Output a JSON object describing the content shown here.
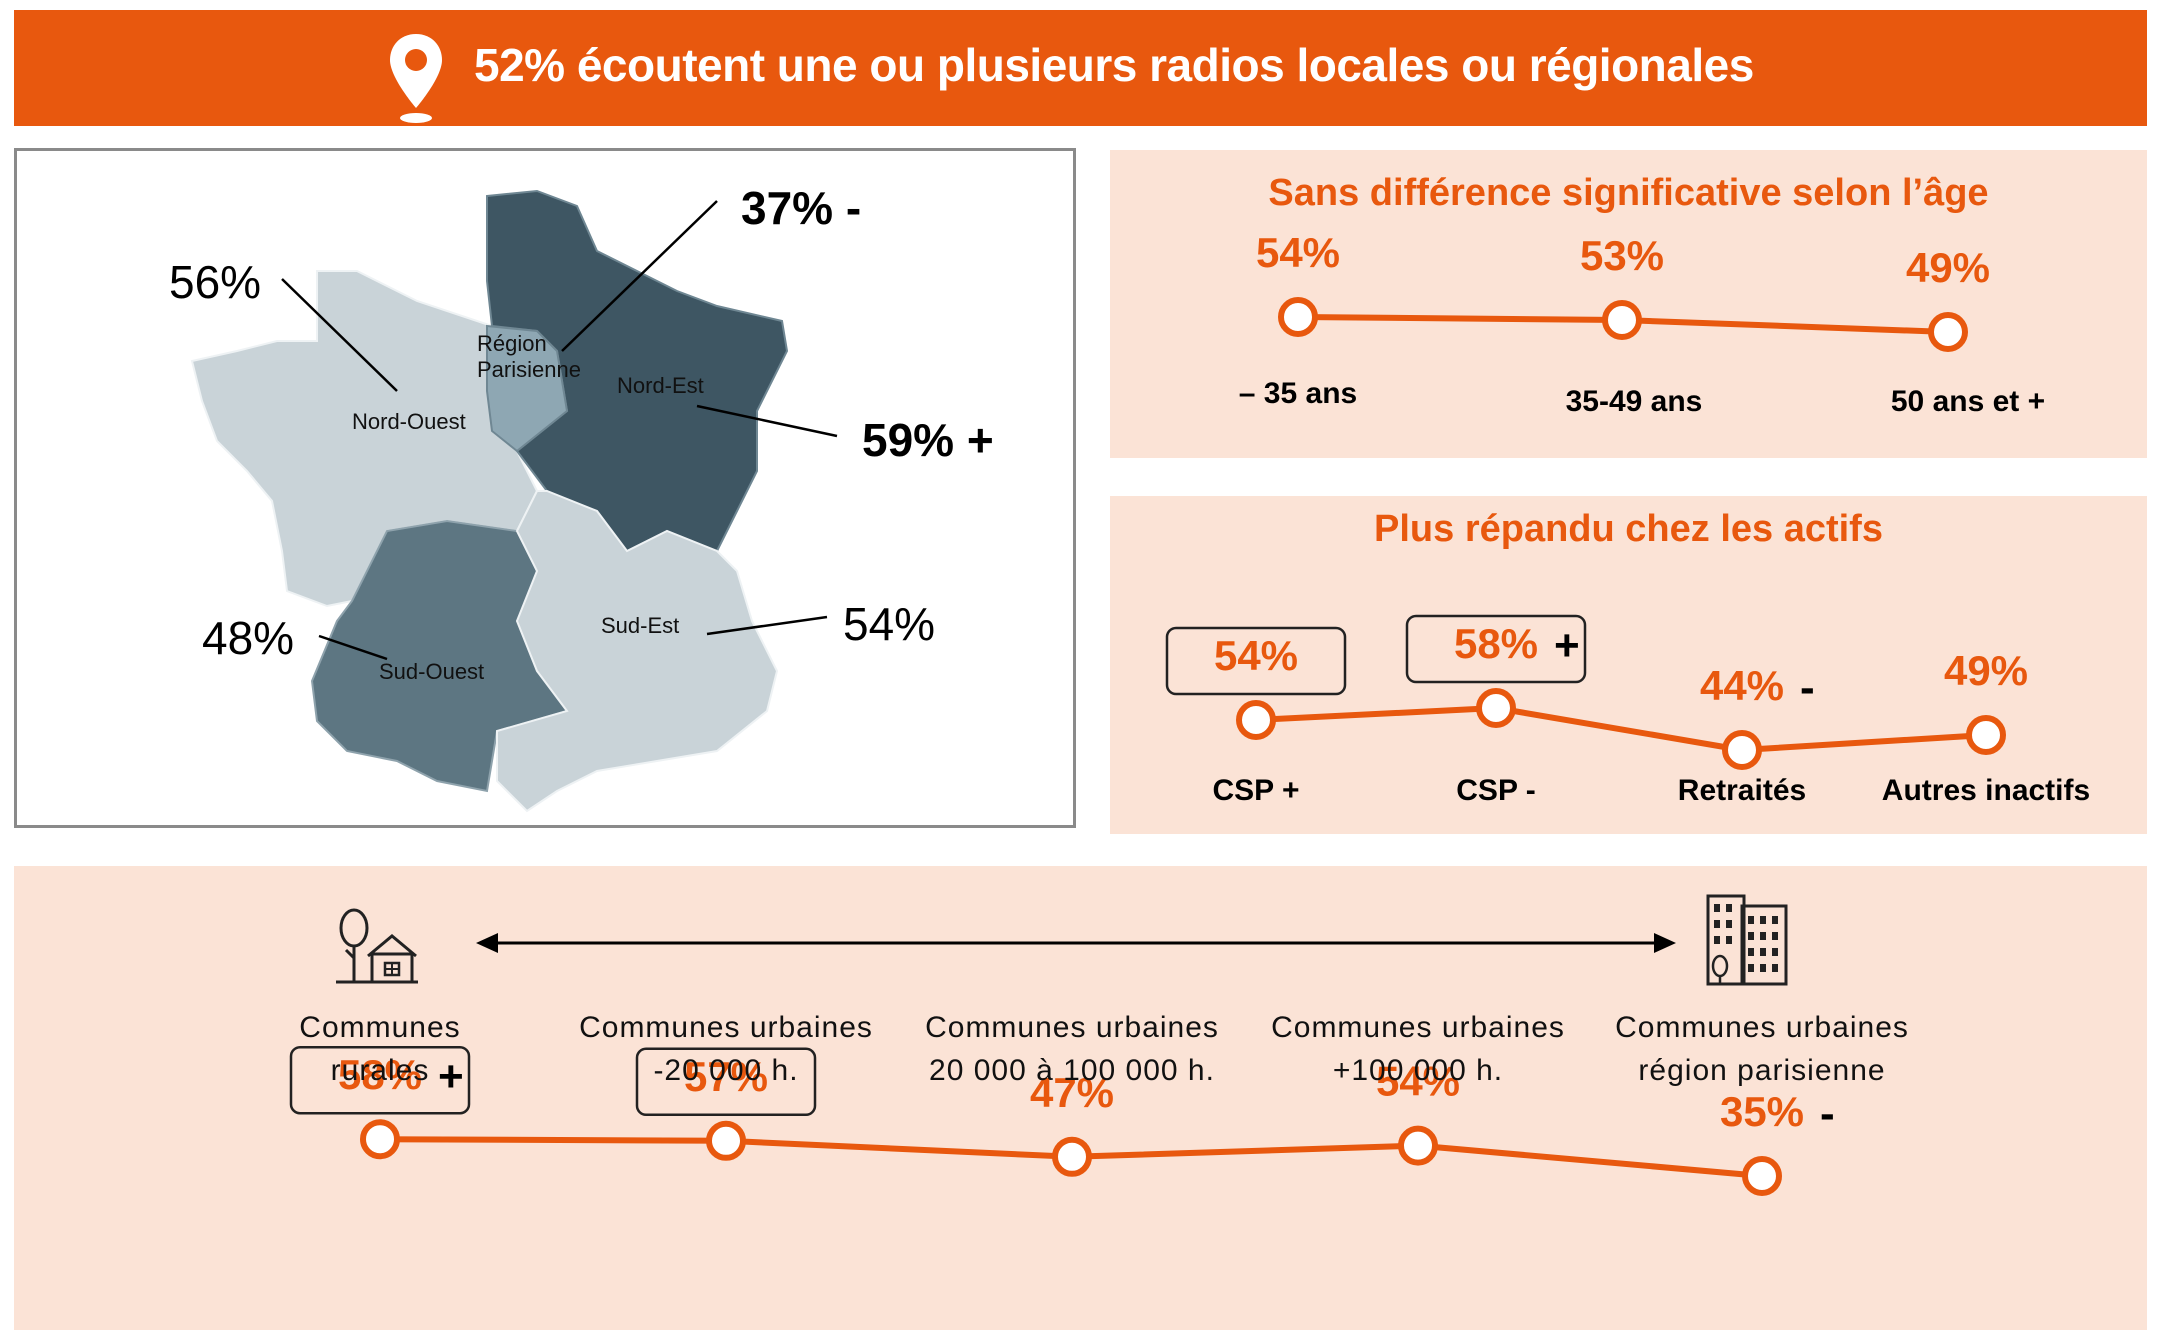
{
  "header": {
    "title": "52% écoutent une ou plusieurs radios locales ou régionales",
    "icon": "location-pin-icon",
    "color": "#E8580E"
  },
  "map": {
    "regions": [
      {
        "name": "Nord-Ouest",
        "value": "56%",
        "sig": ""
      },
      {
        "name": "Région Parisienne",
        "name_line1": "Région",
        "name_line2": "Parisienne",
        "value": "37%",
        "sig": "-"
      },
      {
        "name": "Nord-Est",
        "value": "59%",
        "sig": "+"
      },
      {
        "name": "Sud-Ouest",
        "value": "48%",
        "sig": ""
      },
      {
        "name": "Sud-Est",
        "value": "54%",
        "sig": ""
      }
    ]
  },
  "chart_data": [
    {
      "type": "line",
      "title": "Sans différence significative selon l’âge",
      "categories": [
        "– 35 ans",
        "35-49 ans",
        "50 ans et +"
      ],
      "values": [
        54,
        53,
        49
      ],
      "labels": [
        "54%",
        "53%",
        "49%"
      ],
      "sig": [
        "",
        "",
        ""
      ]
    },
    {
      "type": "line",
      "title": "Plus répandu chez les actifs",
      "categories": [
        "CSP +",
        "CSP -",
        "Retraités",
        "Autres inactifs"
      ],
      "values": [
        54,
        58,
        44,
        49
      ],
      "labels": [
        "54%",
        "58%",
        "44%",
        "49%"
      ],
      "sig": [
        "",
        "+",
        "-",
        ""
      ],
      "boxed": [
        true,
        true,
        false,
        false
      ]
    },
    {
      "type": "line",
      "title": "",
      "categories": [
        "Communes rurales",
        "Communes urbaines -20 000 h.",
        "Communes urbaines 20 000 à 100 000 h.",
        "Communes urbaines +100 000 h.",
        "Communes urbaines région parisienne"
      ],
      "category_lines": [
        [
          "Communes",
          "rurales"
        ],
        [
          "Communes urbaines",
          "-20 000 h."
        ],
        [
          "Communes urbaines",
          "20 000 à 100 000 h."
        ],
        [
          "Communes urbaines",
          "+100 000 h."
        ],
        [
          "Communes urbaines",
          "région parisienne"
        ]
      ],
      "values": [
        58,
        57,
        47,
        54,
        35
      ],
      "labels": [
        "58%",
        "57%",
        "47%",
        "54%",
        "35%"
      ],
      "sig": [
        "+",
        "",
        "",
        "",
        "-"
      ],
      "boxed": [
        true,
        true,
        false,
        false,
        false
      ]
    }
  ],
  "icons": {
    "left": "rural-house-tree-icon",
    "right": "city-buildings-icon",
    "arrow": "double-arrow-icon"
  },
  "colors": {
    "accent": "#E8580E",
    "panel": "#FBE3D6",
    "dark_region": "#3E5663",
    "mid_region": "#5D7682",
    "light_region": "#C9D3D8",
    "paris_region": "#8EA7B3"
  }
}
